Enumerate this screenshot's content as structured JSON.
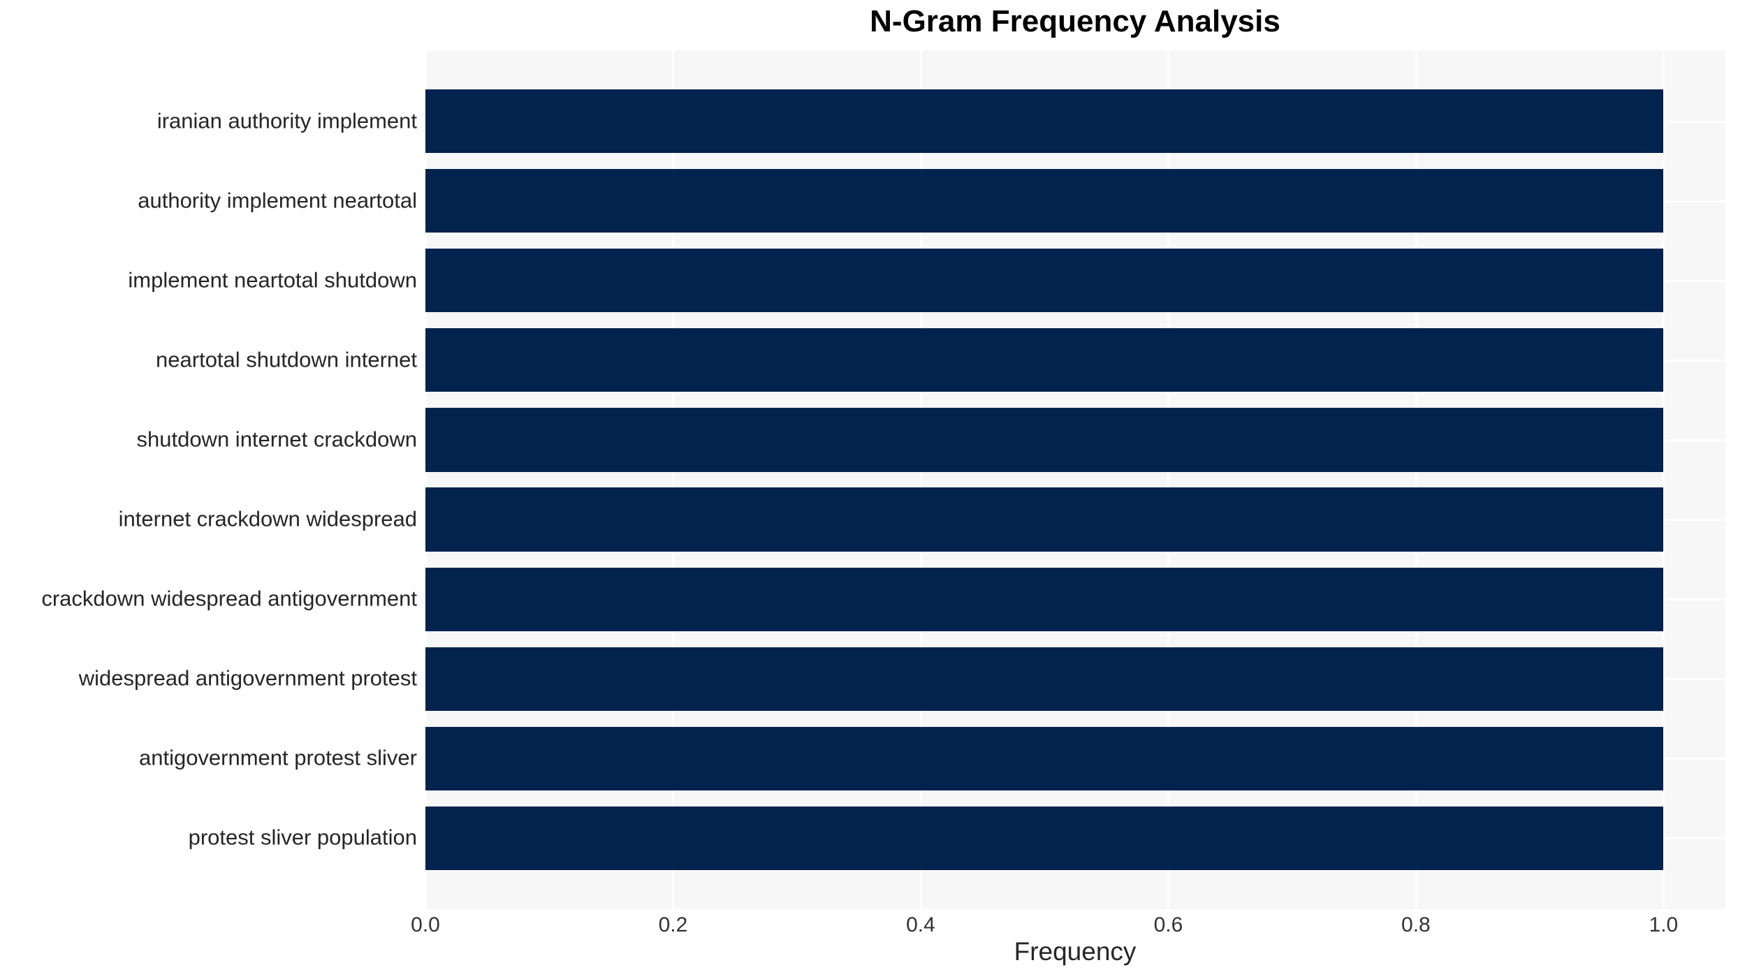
{
  "chart_data": {
    "type": "bar",
    "orientation": "horizontal",
    "title": "N-Gram Frequency Analysis",
    "xlabel": "Frequency",
    "ylabel": "",
    "categories": [
      "iranian authority implement",
      "authority implement neartotal",
      "implement neartotal shutdown",
      "neartotal shutdown internet",
      "shutdown internet crackdown",
      "internet crackdown widespread",
      "crackdown widespread antigovernment",
      "widespread antigovernment protest",
      "antigovernment protest sliver",
      "protest sliver population"
    ],
    "values": [
      1.0,
      1.0,
      1.0,
      1.0,
      1.0,
      1.0,
      1.0,
      1.0,
      1.0,
      1.0
    ],
    "xlim": [
      0,
      1.05
    ],
    "xtick_labels": [
      "0.0",
      "0.2",
      "0.4",
      "0.6",
      "0.8",
      "1.0"
    ],
    "xtick_values": [
      0,
      0.2,
      0.4,
      0.6,
      0.8,
      1.0
    ],
    "grid": "on",
    "legend": "none",
    "bar_height_fraction": 0.8,
    "colors": {
      "bar": "#02234E",
      "plot_background": "#F7F7F7",
      "gridline": "#FFFFFF",
      "tick_text": "#333333",
      "label_text": "#262626",
      "title_text": "#000000"
    }
  }
}
